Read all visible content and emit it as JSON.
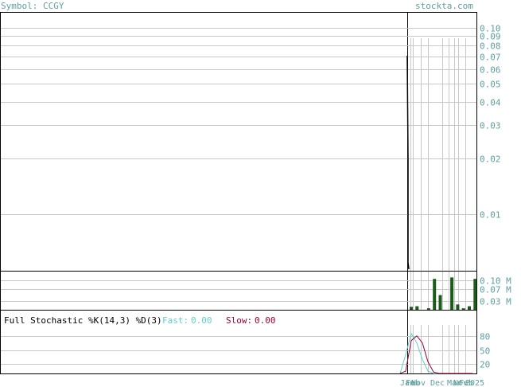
{
  "header": {
    "symbol_text": "Symbol: CCGY",
    "site": "stockta.com"
  },
  "colors": {
    "text_teal": "#5f9ea0",
    "grid": "#c8c8c8",
    "frame": "#000000",
    "volume_bar": "#1a5c1a",
    "fast_line": "#66cccc",
    "slow_line": "#990033",
    "price_line": "#000000"
  },
  "stochastic": {
    "title": "Full Stochastic %K(14,3) %D(3)",
    "fast_label": "Fast:",
    "fast_value": "0.00",
    "slow_label": "Slow:",
    "slow_value": "0.00"
  },
  "chart_data": [
    {
      "type": "line",
      "panel": "price",
      "scale": "log",
      "ylim": [
        0.005,
        0.12
      ],
      "ytick_labels": [
        "0.10",
        "0.09",
        "0.08",
        "0.07",
        "0.06",
        "0.05",
        "0.04",
        "0.03",
        "0.02",
        "0.01"
      ],
      "yticks": [
        0.1,
        0.09,
        0.08,
        0.07,
        0.06,
        0.05,
        0.04,
        0.03,
        0.02,
        0.01
      ],
      "grid": true
    },
    {
      "type": "bar",
      "panel": "volume",
      "ytick_labels": [
        "0.10 M",
        "0.07 M",
        "0.03 M"
      ],
      "yticks": [
        0.1,
        0.07,
        0.03
      ],
      "ylim": [
        0,
        0.13
      ],
      "values": [
        0.01,
        0.012,
        0.0,
        0.005,
        0.105,
        0.05,
        0.0,
        0.11,
        0.018,
        0.005,
        0.012,
        0.105
      ]
    },
    {
      "type": "line",
      "panel": "stochastic",
      "ylim": [
        0,
        100
      ],
      "ytick_labels": [
        "80",
        "50",
        "20"
      ],
      "yticks": [
        80,
        50,
        20
      ],
      "series": [
        {
          "key": "fast",
          "values": [
            0,
            40,
            85,
            65,
            30,
            5,
            0,
            0,
            0,
            0,
            0,
            0,
            0,
            0
          ]
        },
        {
          "key": "slow",
          "values": [
            0,
            5,
            70,
            80,
            65,
            25,
            3,
            0,
            0,
            0,
            0,
            0,
            0,
            0
          ]
        }
      ],
      "xtick_labels": [
        "Jan",
        "Feb",
        "Nov",
        "Dec",
        "Mar",
        "Nov",
        "Feb",
        "2025"
      ]
    }
  ]
}
